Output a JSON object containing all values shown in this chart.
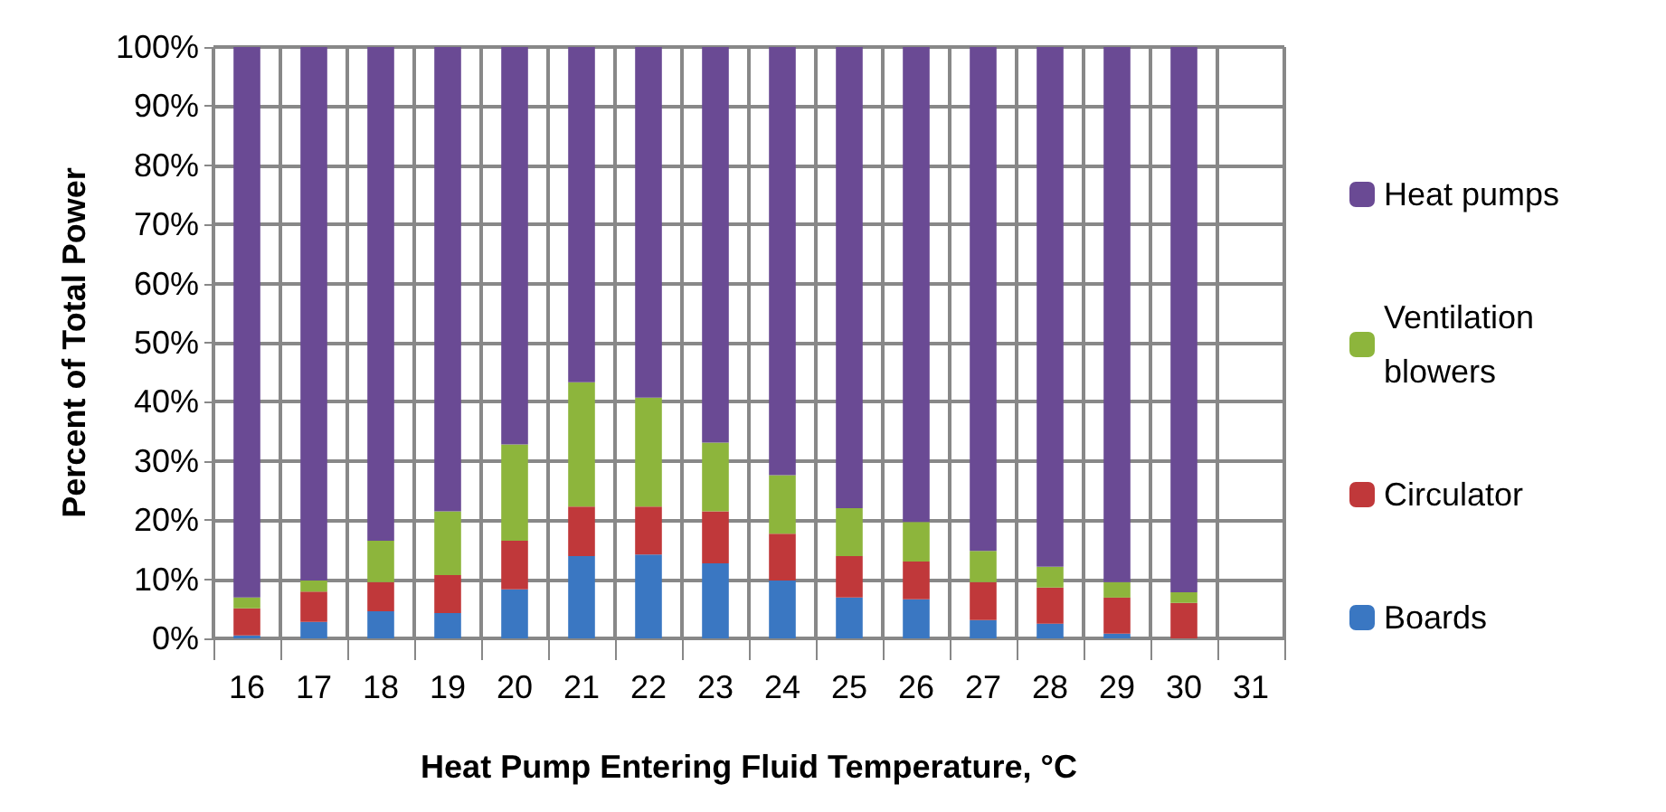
{
  "chart_data": {
    "type": "bar",
    "stacked": true,
    "xlabel": "Heat Pump Entering Fluid Temperature, °C",
    "ylabel": "Percent of Total Power",
    "categories": [
      "16",
      "17",
      "18",
      "19",
      "20",
      "21",
      "22",
      "23",
      "24",
      "25",
      "26",
      "27",
      "28",
      "29",
      "30",
      "31"
    ],
    "series": [
      {
        "name": "Boards",
        "color": "#3a77c2",
        "values": [
          0.5,
          2.8,
          4.6,
          4.3,
          8.3,
          13.9,
          14.2,
          12.7,
          9.8,
          6.9,
          6.6,
          3.1,
          2.5,
          0.8,
          0,
          null
        ]
      },
      {
        "name": "Circulator",
        "color": "#c0383a",
        "values": [
          4.6,
          5.1,
          4.9,
          6.4,
          8.2,
          8.4,
          8.1,
          8.8,
          7.9,
          7.0,
          6.4,
          6.4,
          6.1,
          6.1,
          6.0,
          null
        ]
      },
      {
        "name": "Ventilation blowers",
        "color": "#8db53c",
        "values": [
          1.8,
          1.9,
          7.0,
          10.8,
          16.3,
          21.0,
          18.4,
          11.6,
          9.9,
          8.1,
          6.7,
          5.3,
          3.5,
          2.6,
          1.8,
          null
        ]
      },
      {
        "name": "Heat pumps",
        "color": "#6a4a94",
        "values": [
          93.1,
          90.2,
          83.5,
          78.5,
          67.2,
          56.7,
          59.3,
          66.9,
          72.4,
          78.0,
          80.3,
          85.2,
          87.9,
          90.5,
          92.2,
          null
        ]
      }
    ],
    "ylim": [
      0,
      100
    ],
    "yticks": [
      {
        "value": 0,
        "label": "0%"
      },
      {
        "value": 10,
        "label": "10%"
      },
      {
        "value": 20,
        "label": "20%"
      },
      {
        "value": 30,
        "label": "30%"
      },
      {
        "value": 40,
        "label": "40%"
      },
      {
        "value": 50,
        "label": "50%"
      },
      {
        "value": 60,
        "label": "60%"
      },
      {
        "value": 70,
        "label": "70%"
      },
      {
        "value": 80,
        "label": "80%"
      },
      {
        "value": 90,
        "label": "90%"
      },
      {
        "value": 100,
        "label": "100%"
      }
    ],
    "grid": true,
    "legend": "right"
  }
}
